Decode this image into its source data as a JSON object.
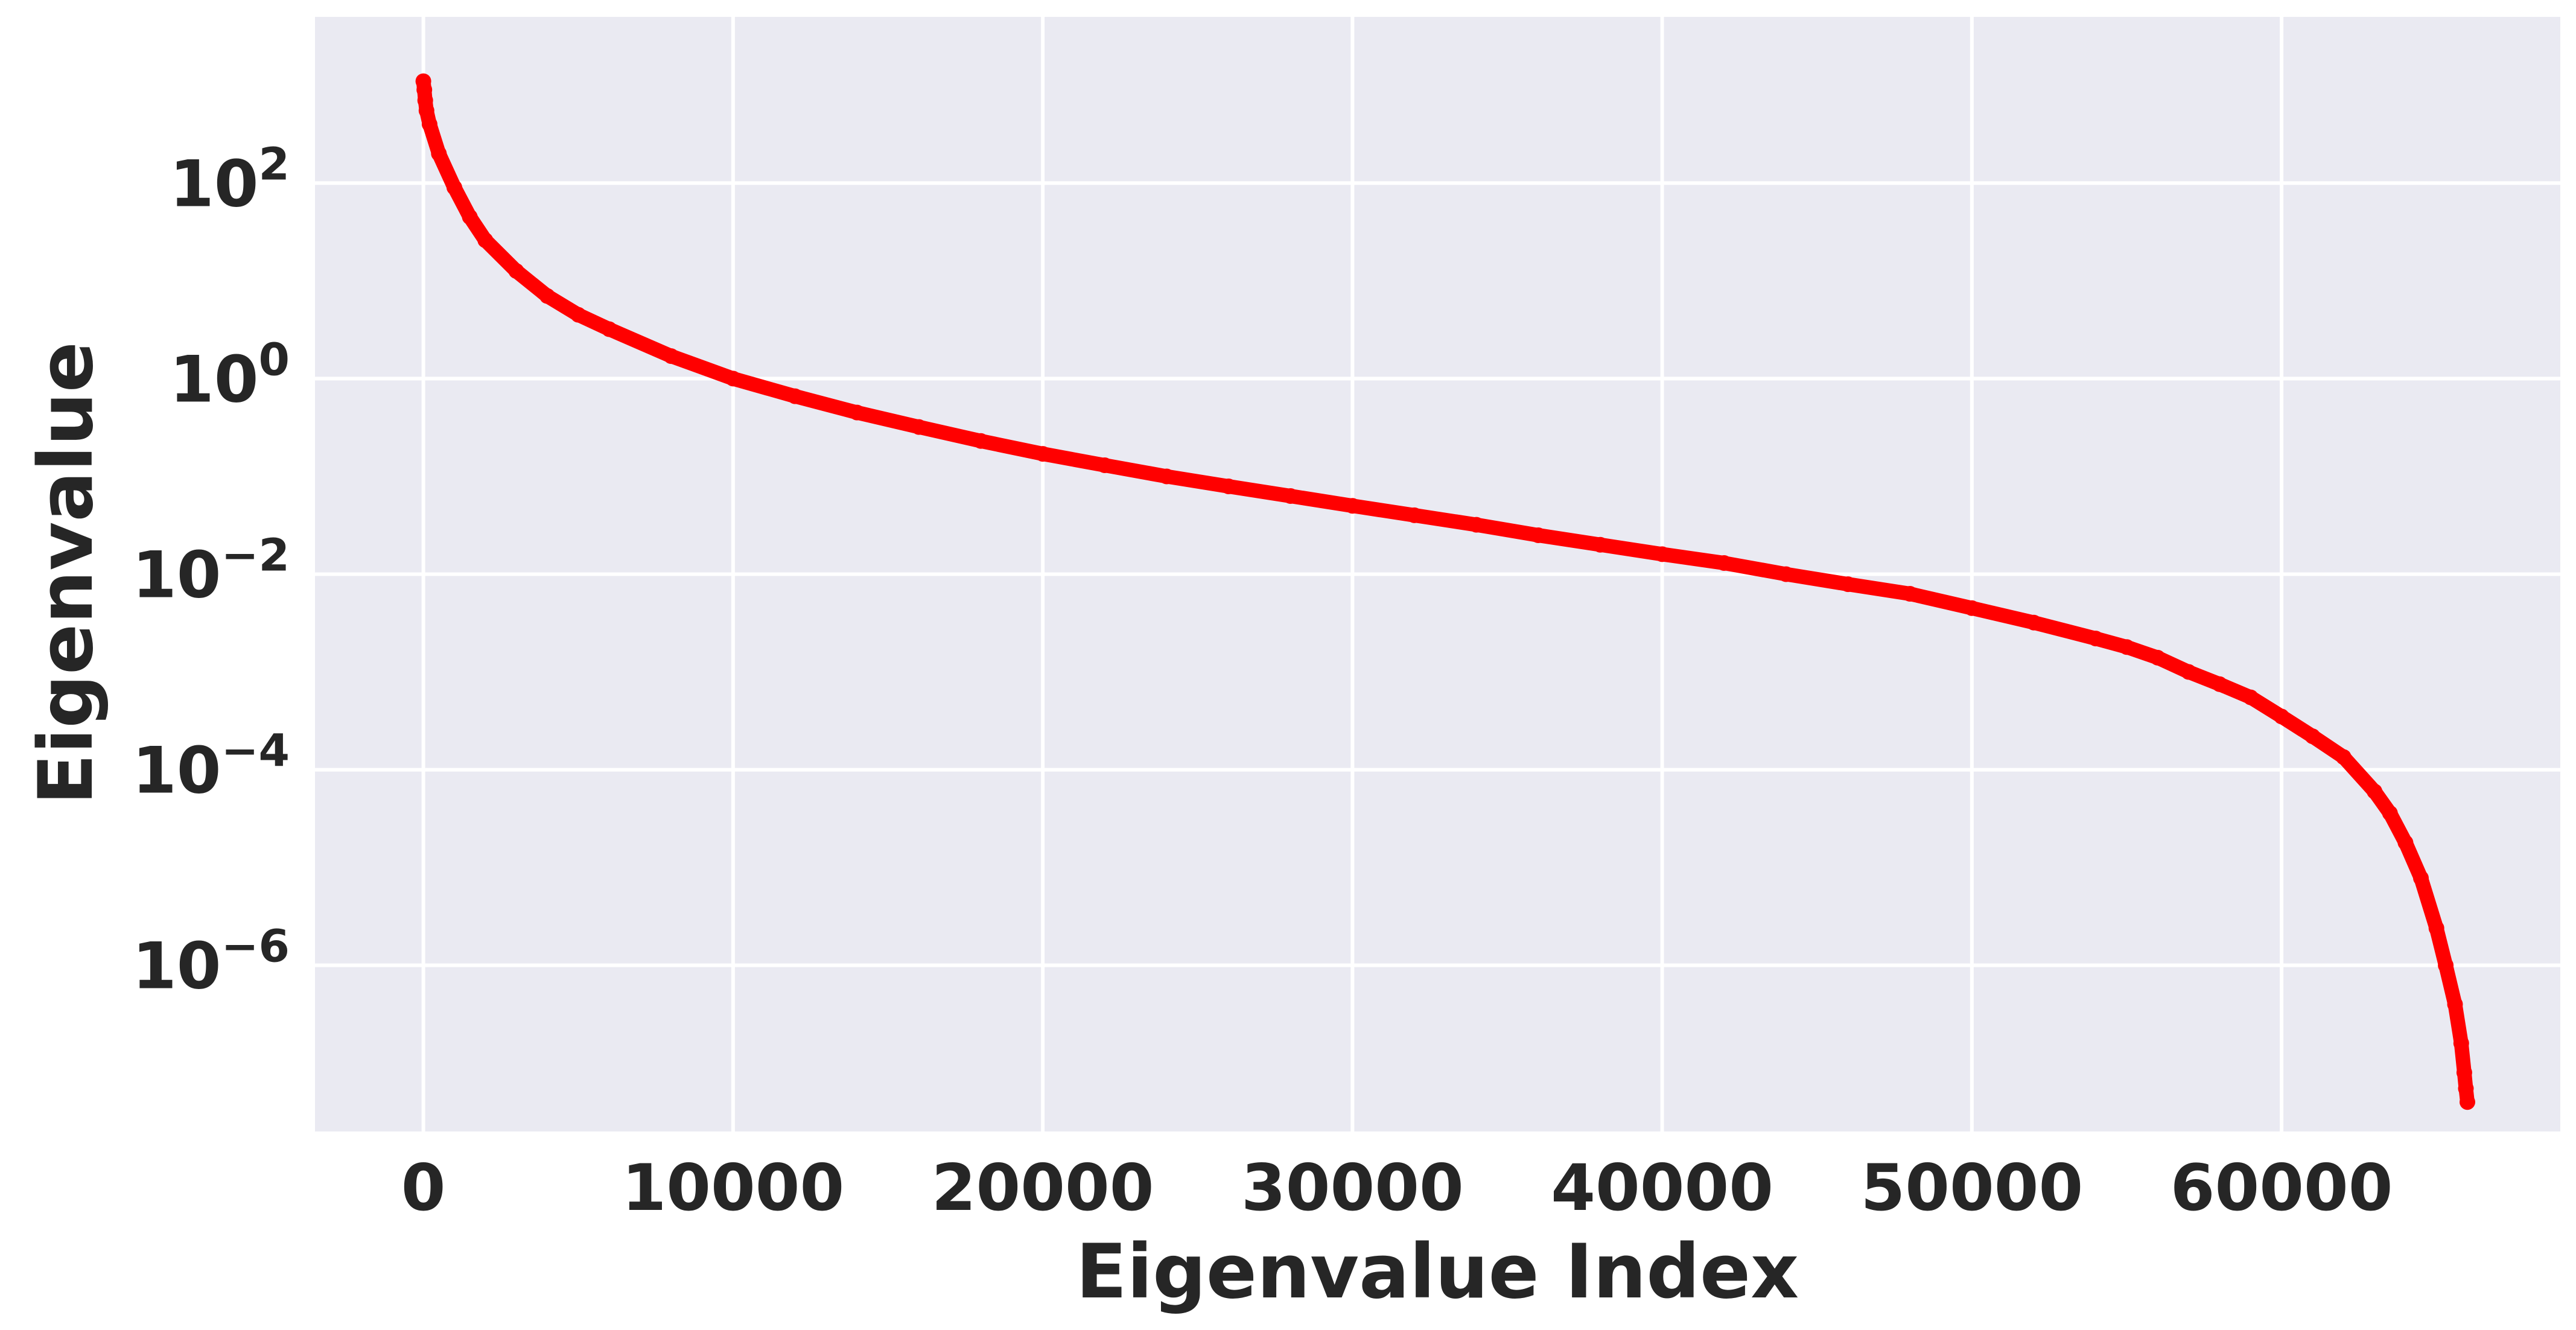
{
  "chart_data": {
    "type": "scatter",
    "title": "",
    "xlabel": "Eigenvalue Index",
    "ylabel": "Eigenvalue",
    "xlim": [
      -3500,
      69000
    ],
    "ylim": [
      2e-08,
      5000
    ],
    "y_scale": "log",
    "grid": true,
    "background_color": "#EAEAF2",
    "grid_color": "#FFFFFF",
    "marker_color": "#FF0000",
    "x_ticks": [
      {
        "value": 0,
        "label": "0"
      },
      {
        "value": 10000,
        "label": "10000"
      },
      {
        "value": 20000,
        "label": "20000"
      },
      {
        "value": 30000,
        "label": "30000"
      },
      {
        "value": 40000,
        "label": "40000"
      },
      {
        "value": 50000,
        "label": "50000"
      },
      {
        "value": 60000,
        "label": "60000"
      }
    ],
    "y_ticks": [
      {
        "value": 100,
        "base": "10",
        "exp": "2"
      },
      {
        "value": 1,
        "base": "10",
        "exp": "0"
      },
      {
        "value": 0.01,
        "base": "10",
        "exp": "−2"
      },
      {
        "value": 0.0001,
        "base": "10",
        "exp": "−4"
      },
      {
        "value": 1e-06,
        "base": "10",
        "exp": "−6"
      }
    ],
    "series": [
      {
        "x": [
          0,
          30,
          60,
          100,
          200,
          500,
          1000,
          1500,
          2000,
          3000,
          4000,
          5000,
          6000,
          8000,
          10000,
          12000,
          14000,
          16000,
          18000,
          20000,
          22000,
          24000,
          26000,
          28000,
          30000,
          32000,
          34000,
          36000,
          38000,
          40000,
          42000,
          44000,
          46000,
          48000,
          50000,
          52000,
          54000,
          55000,
          56000,
          57000,
          58000,
          59000,
          60000,
          61000,
          62000,
          63000,
          63500,
          64000,
          64500,
          65000,
          65300,
          65600,
          65800,
          65900,
          65950,
          66000
        ],
        "y": [
          1100,
          900,
          700,
          550,
          400,
          200,
          90,
          45,
          26,
          12.6,
          7,
          4.5,
          3.2,
          1.7,
          1.0,
          0.66,
          0.45,
          0.32,
          0.23,
          0.17,
          0.13,
          0.1,
          0.079,
          0.063,
          0.05,
          0.04,
          0.032,
          0.025,
          0.02,
          0.016,
          0.013,
          0.01,
          0.0079,
          0.0063,
          0.0045,
          0.0032,
          0.0022,
          0.0018,
          0.0014,
          0.001,
          0.00075,
          0.00055,
          0.00035,
          0.00022,
          0.000135,
          6e-05,
          3.6e-05,
          1.8e-05,
          7.8e-06,
          2.4e-06,
          1e-06,
          4e-07,
          1.6e-07,
          8e-08,
          5.5e-08,
          4e-08
        ]
      }
    ]
  }
}
